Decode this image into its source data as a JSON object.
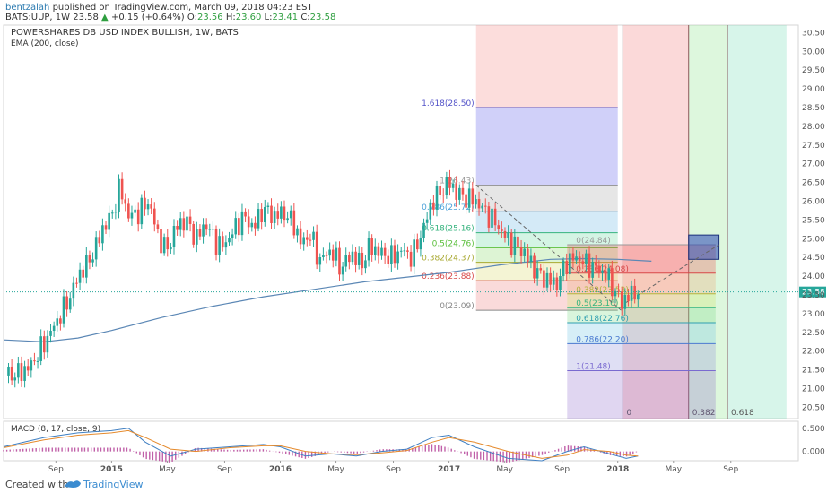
{
  "header": {
    "user": "bentzalah",
    "published": " published on TradingView.com, March 09, 2018 04:23 EST",
    "symbol": "BATS:UUP, 1W",
    "price": "23.58",
    "change": "+0.15 (+0.64%)",
    "o_label": "O:",
    "o_value": "23.56",
    "h_label": "H:",
    "h_value": "23.60",
    "l_label": "L:",
    "l_value": "23.41",
    "c_label": "C:",
    "c_value": "23.58"
  },
  "footer": {
    "created": "Created with",
    "brand": "TradingView"
  },
  "colors": {
    "up": "#26a69a",
    "down": "#ef5350",
    "ema": "#5b87b5",
    "bg": "#ffffff"
  },
  "chart_data": {
    "type": "candlestick",
    "title": "POWERSHARES DB USD INDEX BULLISH, 1W, BATS",
    "indicator_label": "EMA (200, close)",
    "ylim": [
      20.2,
      30.7
    ],
    "y_ticks": [
      "30.50",
      "30.00",
      "29.50",
      "29.00",
      "28.50",
      "28.00",
      "27.50",
      "27.00",
      "26.50",
      "26.00",
      "25.50",
      "25.00",
      "24.50",
      "24.00",
      "23.50",
      "23.00",
      "22.50",
      "22.00",
      "21.50",
      "21.00",
      "20.50"
    ],
    "last_price_label": "23.58",
    "last_price": 23.58,
    "x_ticks": [
      {
        "label": "Sep",
        "x": 2014.67
      },
      {
        "label": "2015",
        "x": 2015.0
      },
      {
        "label": "May",
        "x": 2015.33
      },
      {
        "label": "Sep",
        "x": 2015.67
      },
      {
        "label": "2016",
        "x": 2016.0
      },
      {
        "label": "May",
        "x": 2016.33
      },
      {
        "label": "Sep",
        "x": 2016.67
      },
      {
        "label": "2017",
        "x": 2017.0
      },
      {
        "label": "May",
        "x": 2017.33
      },
      {
        "label": "Sep",
        "x": 2017.67
      },
      {
        "label": "2018",
        "x": 2018.0
      },
      {
        "label": "May",
        "x": 2018.33
      },
      {
        "label": "Sep",
        "x": 2018.67
      }
    ],
    "xlim": [
      2014.36,
      2019.07
    ],
    "price_path": [
      [
        2014.37,
        21.35
      ],
      [
        2014.45,
        21.4
      ],
      [
        2014.52,
        21.6
      ],
      [
        2014.6,
        22.2
      ],
      [
        2014.65,
        22.6
      ],
      [
        2014.7,
        23.0
      ],
      [
        2014.76,
        23.5
      ],
      [
        2014.8,
        24.0
      ],
      [
        2014.85,
        24.3
      ],
      [
        2014.9,
        24.7
      ],
      [
        2014.95,
        25.3
      ],
      [
        2015.0,
        25.6
      ],
      [
        2015.05,
        26.4
      ],
      [
        2015.1,
        25.6
      ],
      [
        2015.16,
        25.7
      ],
      [
        2015.22,
        26.0
      ],
      [
        2015.28,
        25.0
      ],
      [
        2015.33,
        24.7
      ],
      [
        2015.38,
        25.3
      ],
      [
        2015.44,
        25.5
      ],
      [
        2015.5,
        25.0
      ],
      [
        2015.56,
        25.4
      ],
      [
        2015.62,
        24.9
      ],
      [
        2015.66,
        24.8
      ],
      [
        2015.72,
        25.2
      ],
      [
        2015.78,
        25.6
      ],
      [
        2015.84,
        25.3
      ],
      [
        2015.9,
        25.8
      ],
      [
        2015.96,
        25.6
      ],
      [
        2016.02,
        25.7
      ],
      [
        2016.08,
        25.4
      ],
      [
        2016.12,
        24.9
      ],
      [
        2016.18,
        25.1
      ],
      [
        2016.23,
        24.4
      ],
      [
        2016.3,
        24.7
      ],
      [
        2016.36,
        24.2
      ],
      [
        2016.42,
        24.6
      ],
      [
        2016.48,
        24.3
      ],
      [
        2016.53,
        24.8
      ],
      [
        2016.6,
        24.6
      ],
      [
        2016.66,
        24.5
      ],
      [
        2016.72,
        24.7
      ],
      [
        2016.78,
        24.5
      ],
      [
        2016.85,
        25.3
      ],
      [
        2016.9,
        26.0
      ],
      [
        2016.96,
        26.3
      ],
      [
        2017.0,
        26.5
      ],
      [
        2017.05,
        26.2
      ],
      [
        2017.1,
        26.1
      ],
      [
        2017.16,
        26.0
      ],
      [
        2017.22,
        25.7
      ],
      [
        2017.28,
        25.4
      ],
      [
        2017.34,
        25.0
      ],
      [
        2017.4,
        24.8
      ],
      [
        2017.45,
        24.6
      ],
      [
        2017.52,
        24.1
      ],
      [
        2017.58,
        23.9
      ],
      [
        2017.64,
        23.8
      ],
      [
        2017.7,
        24.4
      ],
      [
        2017.76,
        24.5
      ],
      [
        2017.82,
        24.3
      ],
      [
        2017.88,
        24.2
      ],
      [
        2017.94,
        24.0
      ],
      [
        2017.98,
        23.6
      ],
      [
        2018.02,
        23.3
      ],
      [
        2018.07,
        23.5
      ],
      [
        2018.12,
        23.58
      ]
    ],
    "ema_path": [
      [
        2014.36,
        22.3
      ],
      [
        2014.6,
        22.25
      ],
      [
        2014.8,
        22.35
      ],
      [
        2015.0,
        22.55
      ],
      [
        2015.3,
        22.9
      ],
      [
        2015.6,
        23.2
      ],
      [
        2015.9,
        23.45
      ],
      [
        2016.2,
        23.65
      ],
      [
        2016.5,
        23.85
      ],
      [
        2016.8,
        24.0
      ],
      [
        2017.0,
        24.1
      ],
      [
        2017.3,
        24.3
      ],
      [
        2017.6,
        24.45
      ],
      [
        2017.8,
        24.47
      ],
      [
        2018.0,
        24.45
      ],
      [
        2018.2,
        24.4
      ]
    ],
    "fib_extension": {
      "x_start": 2017.16,
      "x_end": 2018.0,
      "levels": [
        {
          "label": "1.618(28.50)",
          "value": 28.5
        },
        {
          "label": "1(26.43)",
          "value": 26.43
        },
        {
          "label": "0.786(25.72)",
          "value": 25.72
        },
        {
          "label": "0.618(25.16)",
          "value": 25.16
        },
        {
          "label": "0.5(24.76)",
          "value": 24.76
        },
        {
          "label": "0.382(24.37)",
          "value": 24.37
        },
        {
          "label": "0.236(23.88)",
          "value": 23.88
        },
        {
          "label": "0(23.09)",
          "value": 23.09
        }
      ]
    },
    "fib_retracement": {
      "x_start": 2017.7,
      "x_end": 2018.58,
      "levels": [
        {
          "label": "0(24.84)",
          "value": 24.84
        },
        {
          "label": "0.236(24.08)",
          "value": 24.08
        },
        {
          "label": "0.382(23.53)",
          "value": 23.53
        },
        {
          "label": "0.5(23.16)",
          "value": 23.16
        },
        {
          "label": "0.618(22.76)",
          "value": 22.76
        },
        {
          "label": "0.786(22.20)",
          "value": 22.2
        },
        {
          "label": "1(21.48)",
          "value": 21.48
        }
      ]
    },
    "fib_time_zones": [
      {
        "label": "0",
        "x": 2018.03
      },
      {
        "label": "0.382",
        "x": 2018.42
      },
      {
        "label": "0.618",
        "x": 2018.65
      }
    ],
    "target_box": {
      "x_start": 2018.42,
      "x_end": 2018.6,
      "y_low": 24.45,
      "y_high": 25.1
    },
    "macd": {
      "label": "MACD (8, 17, close, 9)",
      "ylim": [
        -0.2,
        0.65
      ],
      "y_ticks": [
        "0.500",
        "0.000"
      ],
      "macd_path": [
        [
          2014.36,
          0.1
        ],
        [
          2014.6,
          0.3
        ],
        [
          2014.8,
          0.4
        ],
        [
          2015.0,
          0.45
        ],
        [
          2015.1,
          0.5
        ],
        [
          2015.2,
          0.2
        ],
        [
          2015.35,
          -0.1
        ],
        [
          2015.5,
          0.05
        ],
        [
          2015.7,
          0.1
        ],
        [
          2015.9,
          0.15
        ],
        [
          2016.0,
          0.1
        ],
        [
          2016.15,
          -0.1
        ],
        [
          2016.3,
          -0.05
        ],
        [
          2016.45,
          -0.1
        ],
        [
          2016.6,
          0.0
        ],
        [
          2016.75,
          0.05
        ],
        [
          2016.9,
          0.3
        ],
        [
          2017.0,
          0.35
        ],
        [
          2017.15,
          0.1
        ],
        [
          2017.35,
          -0.15
        ],
        [
          2017.55,
          -0.2
        ],
        [
          2017.7,
          0.0
        ],
        [
          2017.8,
          0.1
        ],
        [
          2017.95,
          -0.05
        ],
        [
          2018.05,
          -0.15
        ],
        [
          2018.12,
          -0.1
        ]
      ],
      "signal_path": [
        [
          2014.36,
          0.08
        ],
        [
          2014.6,
          0.25
        ],
        [
          2014.8,
          0.35
        ],
        [
          2015.0,
          0.4
        ],
        [
          2015.1,
          0.45
        ],
        [
          2015.2,
          0.3
        ],
        [
          2015.35,
          0.05
        ],
        [
          2015.5,
          0.0
        ],
        [
          2015.7,
          0.08
        ],
        [
          2015.9,
          0.12
        ],
        [
          2016.0,
          0.12
        ],
        [
          2016.15,
          0.0
        ],
        [
          2016.3,
          -0.05
        ],
        [
          2016.45,
          -0.07
        ],
        [
          2016.6,
          -0.03
        ],
        [
          2016.75,
          0.02
        ],
        [
          2016.9,
          0.2
        ],
        [
          2017.0,
          0.3
        ],
        [
          2017.15,
          0.2
        ],
        [
          2017.35,
          0.0
        ],
        [
          2017.55,
          -0.15
        ],
        [
          2017.7,
          -0.08
        ],
        [
          2017.8,
          0.04
        ],
        [
          2017.95,
          0.0
        ],
        [
          2018.05,
          -0.08
        ],
        [
          2018.12,
          -0.1
        ]
      ]
    }
  }
}
